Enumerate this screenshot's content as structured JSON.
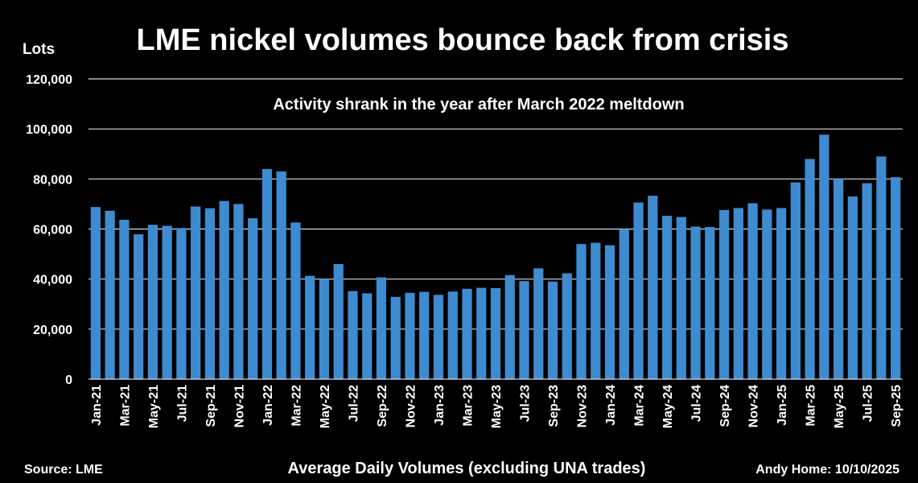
{
  "chart_data": {
    "type": "bar",
    "title": "LME nickel volumes bounce back from crisis",
    "subtitle": "Activity shrank in the year after March 2022 meltdown",
    "ylabel": "Lots",
    "xlabel": "Average Daily Volumes (excluding UNA trades)",
    "source": "Source: LME",
    "credit": "Andy Home: 10/10/2025",
    "ylim": [
      0,
      120000
    ],
    "yticks": [
      0,
      20000,
      40000,
      60000,
      80000,
      100000,
      120000
    ],
    "ytick_labels": [
      "0",
      "20,000",
      "40,000",
      "60,000",
      "80,000",
      "100,000",
      "120,000"
    ],
    "grid": true,
    "bar_color": "#3e8bd0",
    "categories": [
      "Jan-21",
      "Feb-21",
      "Mar-21",
      "Apr-21",
      "May-21",
      "Jun-21",
      "Jul-21",
      "Aug-21",
      "Sep-21",
      "Oct-21",
      "Nov-21",
      "Dec-21",
      "Jan-22",
      "Feb-22",
      "Mar-22",
      "Apr-22",
      "May-22",
      "Jun-22",
      "Jul-22",
      "Aug-22",
      "Sep-22",
      "Oct-22",
      "Nov-22",
      "Dec-22",
      "Jan-23",
      "Feb-23",
      "Mar-23",
      "Apr-23",
      "May-23",
      "Jun-23",
      "Jul-23",
      "Aug-23",
      "Sep-23",
      "Oct-23",
      "Nov-23",
      "Dec-23",
      "Jan-24",
      "Feb-24",
      "Mar-24",
      "Apr-24",
      "May-24",
      "Jun-24",
      "Jul-24",
      "Aug-24",
      "Sep-24",
      "Oct-24",
      "Nov-24",
      "Dec-24",
      "Jan-25",
      "Feb-25",
      "Mar-25",
      "Apr-25",
      "May-25",
      "Jun-25",
      "Jul-25",
      "Aug-25",
      "Sep-25"
    ],
    "xtick_labels": [
      "Jan-21",
      "Mar-21",
      "May-21",
      "Jul-21",
      "Sep-21",
      "Nov-21",
      "Jan-22",
      "Mar-22",
      "May-22",
      "Jul-22",
      "Sep-22",
      "Nov-22",
      "Jan-23",
      "Mar-23",
      "May-23",
      "Jul-23",
      "Sep-23",
      "Nov-23",
      "Jan-24",
      "Mar-24",
      "May-24",
      "Jul-24",
      "Sep-24",
      "Nov-24",
      "Jan-25",
      "Mar-25",
      "May-25",
      "Jul-25",
      "Sep-25"
    ],
    "values": [
      68800,
      67300,
      63700,
      57900,
      61700,
      61300,
      60400,
      69000,
      68300,
      71200,
      70000,
      64300,
      84000,
      83000,
      62600,
      41300,
      40000,
      46000,
      35200,
      34300,
      40700,
      32900,
      34500,
      34900,
      33700,
      35000,
      36100,
      36500,
      36400,
      41600,
      39200,
      44300,
      39000,
      42300,
      54000,
      54500,
      53500,
      60000,
      70600,
      73300,
      65300,
      64800,
      61000,
      60800,
      67600,
      68400,
      70300,
      67800,
      68400,
      78600,
      88000,
      97700,
      80000,
      73000,
      78300,
      89000,
      80700
    ]
  }
}
